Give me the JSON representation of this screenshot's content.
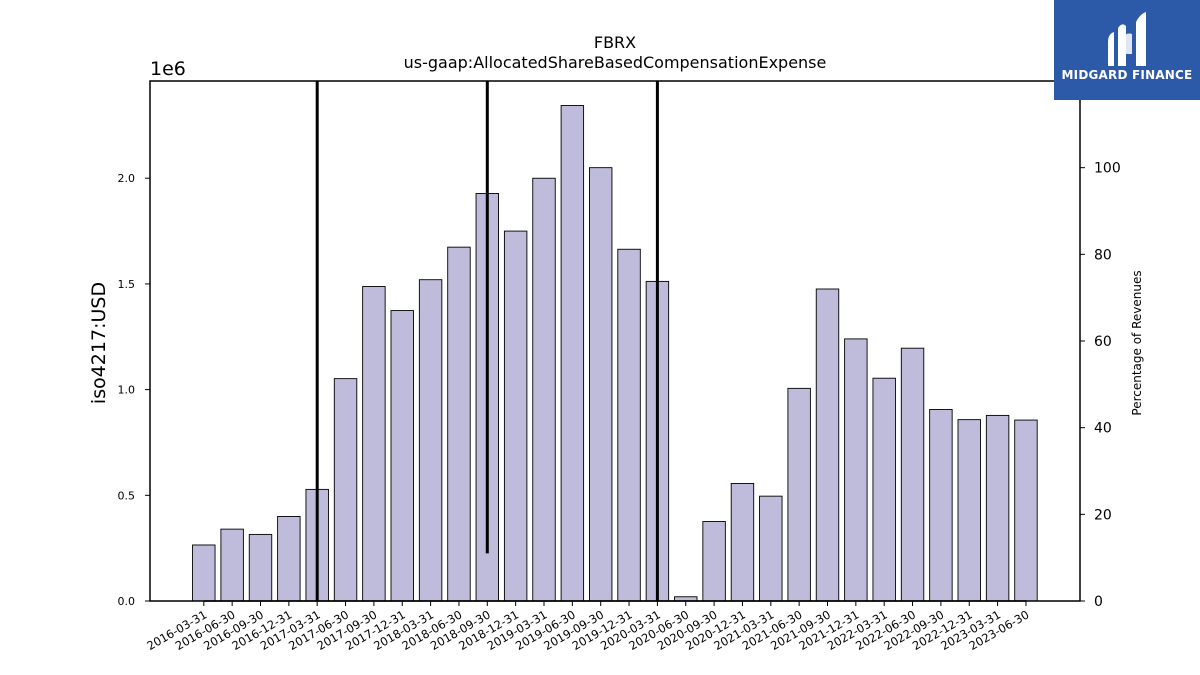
{
  "chart_data": {
    "type": "bar",
    "title": "FBRX",
    "subtitle": "us-gaap:AllocatedShareBasedCompensationExpense",
    "ylabel": "iso4217:USD",
    "y2label": "Percentage of Revenues",
    "offset_text": "1e6",
    "ylim": [
      0,
      2460000
    ],
    "y2lim": [
      0,
      120
    ],
    "yticks": [
      "0.0",
      "0.5",
      "1.0",
      "1.5",
      "2.0"
    ],
    "ytick_values": [
      0,
      500000,
      1000000,
      1500000,
      2000000
    ],
    "y2ticks": [
      "0",
      "20",
      "40",
      "60",
      "80",
      "100"
    ],
    "y2tick_values": [
      0,
      20,
      40,
      60,
      80,
      100
    ],
    "categories": [
      "2016-03-31",
      "2016-06-30",
      "2016-09-30",
      "2016-12-31",
      "2017-03-31",
      "2017-06-30",
      "2017-09-30",
      "2017-12-31",
      "2018-03-31",
      "2018-06-30",
      "2018-09-30",
      "2018-12-31",
      "2019-03-31",
      "2019-06-30",
      "2019-09-30",
      "2019-12-31",
      "2020-03-31",
      "2020-06-30",
      "2020-09-30",
      "2020-12-31",
      "2021-03-31",
      "2021-06-30",
      "2021-09-30",
      "2021-12-31",
      "2022-03-31",
      "2022-06-30",
      "2022-09-30",
      "2022-12-31",
      "2023-03-31",
      "2023-06-30"
    ],
    "values": [
      265000,
      340000,
      315000,
      400000,
      528000,
      1052000,
      1488000,
      1374000,
      1520000,
      1674000,
      1928000,
      1750000,
      2000000,
      2344000,
      2050000,
      1664000,
      1512000,
      20000,
      376000,
      556000,
      496000,
      1006000,
      1476000,
      1240000,
      1054000,
      1196000,
      906000,
      858000,
      878000,
      856000
    ],
    "percentage_series": {
      "name": "Percentage of Revenues",
      "values": [
        0,
        0,
        0,
        0,
        0,
        0,
        0,
        0,
        0,
        0,
        0,
        0,
        0,
        0,
        0,
        0,
        0,
        0,
        0,
        0,
        0,
        0,
        0,
        0,
        0,
        0,
        0,
        0,
        0,
        0
      ]
    },
    "percentage_spikes": [
      {
        "category": "2017-03-31",
        "from": 0,
        "to": 120
      },
      {
        "category": "2018-09-30",
        "from": 11,
        "to": 120
      },
      {
        "category": "2020-03-31",
        "from": 0,
        "to": 120
      }
    ],
    "bar_color": "#bfbcdb",
    "bar_edge_color": "#000000",
    "line_color": "#000000"
  },
  "logo": {
    "name": "MIDGARD FINANCE",
    "background": "#2d5aa8",
    "text_color": "#ffffff"
  }
}
